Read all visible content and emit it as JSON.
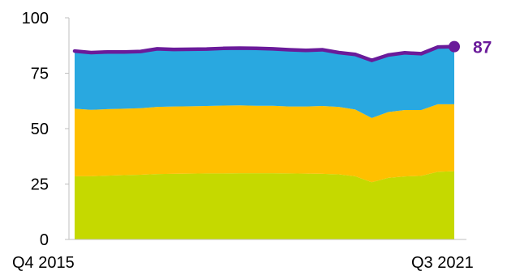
{
  "chart_data": {
    "type": "area",
    "stacked": true,
    "ylim": [
      0,
      100
    ],
    "y_ticks": [
      0,
      25,
      50,
      75,
      100
    ],
    "y_tick_labels": [
      "0",
      "25",
      "50",
      "75",
      "100"
    ],
    "x_tick_labels": [
      "Q4 2015",
      "Q3 2021"
    ],
    "x": [
      "Q4 2015",
      "Q1 2016",
      "Q2 2016",
      "Q3 2016",
      "Q4 2016",
      "Q1 2017",
      "Q2 2017",
      "Q3 2017",
      "Q4 2017",
      "Q1 2018",
      "Q2 2018",
      "Q3 2018",
      "Q4 2018",
      "Q1 2019",
      "Q2 2019",
      "Q3 2019",
      "Q4 2019",
      "Q1 2020",
      "Q2 2020",
      "Q3 2020",
      "Q4 2020",
      "Q1 2021",
      "Q2 2021",
      "Q3 2021"
    ],
    "series": [
      {
        "color": "#c5d900",
        "values": [
          28.5,
          28.5,
          28.8,
          29.0,
          29.2,
          29.5,
          29.6,
          29.7,
          29.8,
          29.8,
          29.9,
          29.9,
          29.9,
          29.8,
          29.7,
          29.6,
          29.4,
          28.5,
          25.8,
          27.8,
          28.4,
          28.7,
          30.5,
          30.8
        ]
      },
      {
        "color": "#ffc000",
        "values": [
          30.5,
          30.0,
          30.0,
          30.0,
          30.0,
          30.3,
          30.4,
          30.4,
          30.4,
          30.6,
          30.6,
          30.4,
          30.4,
          30.2,
          30.3,
          30.6,
          30.4,
          30.1,
          29.0,
          29.7,
          30.0,
          29.7,
          30.5,
          30.2
        ]
      },
      {
        "color": "#29a8e0",
        "values": [
          26.0,
          25.8,
          25.8,
          25.6,
          25.6,
          26.2,
          25.7,
          25.7,
          25.7,
          25.8,
          25.8,
          25.9,
          25.7,
          25.6,
          25.3,
          25.4,
          24.5,
          24.9,
          26.0,
          25.7,
          25.8,
          25.4,
          25.8,
          26.0
        ]
      }
    ],
    "total_line": {
      "color": "#6a1b9a",
      "values": [
        85.0,
        84.3,
        84.6,
        84.6,
        84.8,
        86.0,
        85.7,
        85.8,
        85.9,
        86.2,
        86.3,
        86.2,
        86.0,
        85.6,
        85.3,
        85.6,
        84.3,
        83.5,
        80.8,
        83.2,
        84.2,
        83.8,
        86.8,
        87.0
      ]
    },
    "end_label": "87",
    "grid": false
  }
}
